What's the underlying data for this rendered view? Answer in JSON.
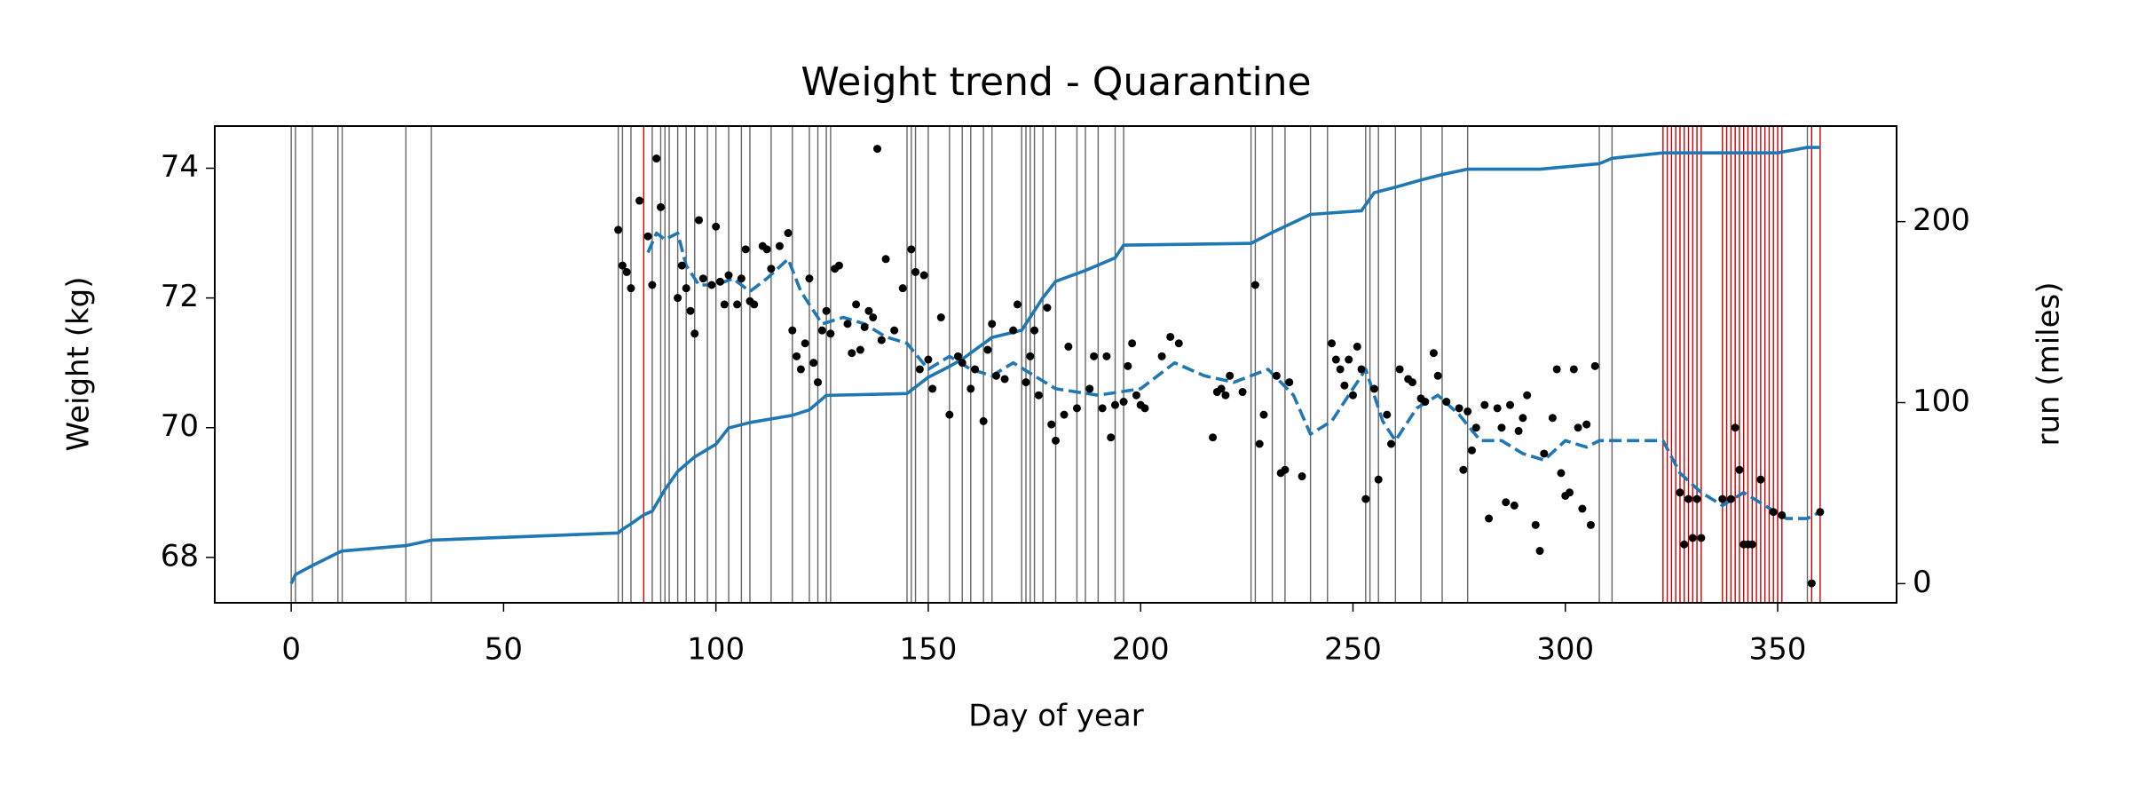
{
  "chart_data": {
    "type": "line",
    "title": "Weight trend - Quarantine",
    "xlabel": "Day of year",
    "ylabel": "Weight (kg)",
    "y2label": "run (miles)",
    "xlim": [
      -18,
      378
    ],
    "xticks": [
      0,
      50,
      100,
      150,
      200,
      250,
      300,
      350
    ],
    "ylim": [
      67.3,
      74.65
    ],
    "yticks": [
      68,
      70,
      72,
      74
    ],
    "y2lim": [
      -10.6,
      252.8
    ],
    "y2ticks": [
      0,
      100,
      200
    ],
    "vlines": [
      {
        "color": "#666666",
        "x": [
          0,
          1,
          5,
          11,
          12,
          27,
          33,
          77,
          78,
          80,
          85,
          87,
          88,
          89,
          91,
          93,
          95,
          98,
          100,
          103,
          106,
          108,
          113,
          118,
          122,
          124,
          126,
          127,
          145,
          146,
          147,
          150,
          155,
          158,
          160,
          163,
          165,
          172,
          173,
          174,
          175,
          177,
          180,
          185,
          187,
          190,
          194,
          196,
          226,
          227,
          231,
          234,
          240,
          244,
          253,
          254,
          256,
          260,
          266,
          271,
          277,
          308,
          311,
          357
        ]
      },
      {
        "color": "#cc0000",
        "x": [
          83,
          323,
          324,
          325,
          326,
          327,
          328,
          329,
          330,
          331,
          332,
          337,
          338,
          339,
          340,
          341,
          342,
          343,
          344,
          345,
          346,
          347,
          348,
          349,
          350,
          351,
          358,
          360
        ]
      }
    ],
    "points": {
      "color": "#000000",
      "x": [
        77,
        78,
        79,
        80,
        82,
        84,
        85,
        86,
        87,
        91,
        92,
        93,
        94,
        95,
        96,
        97,
        99,
        100,
        101,
        102,
        103,
        105,
        106,
        107,
        108,
        109,
        111,
        112,
        113,
        115,
        117,
        118,
        119,
        120,
        121,
        122,
        123,
        124,
        125,
        126,
        127,
        128,
        129,
        131,
        132,
        133,
        134,
        135,
        136,
        137,
        138,
        139,
        140,
        142,
        144,
        146,
        147,
        148,
        149,
        150,
        151,
        153,
        155,
        157,
        158,
        160,
        161,
        163,
        164,
        165,
        166,
        168,
        170,
        171,
        173,
        174,
        175,
        176,
        178,
        179,
        180,
        182,
        183,
        185,
        188,
        189,
        191,
        192,
        193,
        194,
        196,
        197,
        198,
        199,
        200,
        201,
        205,
        207,
        209,
        217,
        218,
        219,
        220,
        221,
        224,
        227,
        228,
        229,
        232,
        233,
        234,
        235,
        238,
        245,
        246,
        247,
        248,
        249,
        250,
        251,
        252,
        253,
        255,
        256,
        258,
        259,
        261,
        263,
        264,
        266,
        267,
        269,
        270,
        272,
        275,
        276,
        277,
        278,
        279,
        281,
        282,
        284,
        285,
        286,
        287,
        288,
        289,
        290,
        291,
        293,
        294,
        295,
        297,
        298,
        299,
        300,
        301,
        302,
        303,
        304,
        305,
        306,
        307,
        327,
        328,
        329,
        330,
        331,
        332,
        337,
        339,
        340,
        341,
        342,
        343,
        344,
        346,
        349,
        351,
        358,
        360
      ],
      "values": [
        73.05,
        72.5,
        72.4,
        72.15,
        73.5,
        72.95,
        72.2,
        74.15,
        73.4,
        72.0,
        72.5,
        72.15,
        71.8,
        71.45,
        73.2,
        72.3,
        72.2,
        73.1,
        72.25,
        71.9,
        72.35,
        71.9,
        72.3,
        72.75,
        71.95,
        71.9,
        72.8,
        72.75,
        72.45,
        72.8,
        73.0,
        71.5,
        71.1,
        70.9,
        71.3,
        72.3,
        71.0,
        70.7,
        71.5,
        71.8,
        71.45,
        72.45,
        72.5,
        71.6,
        71.15,
        71.9,
        71.2,
        71.55,
        71.8,
        71.7,
        74.3,
        71.35,
        72.6,
        71.5,
        72.15,
        72.75,
        72.4,
        70.9,
        72.35,
        71.05,
        70.6,
        71.7,
        70.2,
        71.1,
        71.0,
        70.6,
        70.9,
        70.1,
        71.2,
        71.6,
        70.8,
        70.75,
        71.5,
        71.9,
        70.7,
        71.1,
        71.5,
        70.5,
        71.85,
        70.05,
        69.8,
        70.2,
        71.25,
        70.3,
        70.6,
        71.1,
        70.3,
        71.1,
        69.85,
        70.35,
        70.4,
        70.95,
        71.3,
        70.5,
        70.35,
        70.3,
        71.1,
        71.4,
        71.3,
        69.85,
        70.55,
        70.6,
        70.5,
        70.8,
        70.55,
        72.2,
        69.75,
        70.2,
        70.8,
        69.3,
        69.35,
        70.7,
        69.25,
        71.3,
        71.05,
        70.9,
        70.65,
        71.05,
        70.5,
        71.25,
        70.9,
        68.9,
        70.6,
        69.2,
        70.2,
        69.75,
        70.9,
        70.75,
        70.7,
        70.45,
        70.4,
        71.15,
        70.8,
        70.4,
        70.3,
        69.35,
        70.25,
        69.65,
        70.0,
        70.35,
        68.6,
        70.3,
        70.0,
        68.85,
        70.35,
        68.8,
        69.95,
        70.15,
        70.5,
        68.5,
        68.1,
        69.6,
        70.15,
        70.9,
        69.3,
        68.95,
        69.0,
        70.9,
        70.0,
        68.75,
        70.05,
        68.5,
        70.95,
        69.0,
        68.2,
        68.9,
        68.3,
        68.9,
        68.3,
        68.9,
        68.9,
        70.0,
        69.35,
        68.2,
        68.2,
        68.2,
        69.2,
        68.7,
        68.65,
        67.6,
        68.7
      ]
    },
    "series": [
      {
        "color": "#1f77b4",
        "style": "dashed",
        "x": [
          84,
          86,
          88,
          91,
          93,
          96,
          100,
          104,
          108,
          112,
          117,
          120,
          125,
          130,
          135,
          140,
          145,
          150,
          155,
          160,
          165,
          170,
          175,
          180,
          190,
          200,
          208,
          215,
          222,
          230,
          236,
          240,
          245,
          250,
          253,
          257,
          260,
          265,
          270,
          275,
          280,
          285,
          290,
          295,
          300,
          305,
          308,
          323,
          327,
          332,
          337,
          342,
          347,
          352,
          357,
          360
        ],
        "values": [
          72.7,
          73.0,
          72.9,
          73.0,
          72.5,
          72.2,
          72.2,
          72.3,
          72.1,
          72.3,
          72.6,
          72.1,
          71.6,
          71.7,
          71.6,
          71.4,
          71.3,
          70.9,
          71.1,
          70.9,
          70.8,
          71.0,
          70.8,
          70.6,
          70.5,
          70.6,
          71.0,
          70.8,
          70.7,
          70.9,
          70.5,
          69.9,
          70.1,
          70.6,
          70.9,
          70.1,
          69.8,
          70.3,
          70.5,
          70.2,
          69.8,
          69.8,
          69.6,
          69.5,
          69.8,
          69.7,
          69.8,
          69.8,
          69.3,
          69.0,
          68.8,
          69.0,
          68.8,
          68.6,
          68.6,
          68.7
        ]
      },
      {
        "color": "#1f77b4",
        "axis": "y2",
        "x": [
          0,
          1,
          5,
          11,
          12,
          27,
          33,
          77,
          78,
          80,
          83,
          85,
          88,
          91,
          95,
          100,
          103,
          108,
          118,
          122,
          126,
          145,
          150,
          155,
          158,
          165,
          172,
          177,
          180,
          187,
          194,
          196,
          226,
          231,
          240,
          252,
          255,
          260,
          266,
          271,
          277,
          294,
          308,
          311,
          323,
          350,
          357,
          360
        ],
        "values": [
          0,
          5,
          10,
          17,
          18,
          21,
          24,
          28,
          30,
          33,
          38,
          40,
          52,
          62,
          70,
          77,
          86,
          89,
          93,
          96,
          104,
          105,
          114,
          120,
          124,
          136,
          140,
          158,
          167,
          173,
          180,
          187,
          188,
          194,
          204,
          206,
          216,
          219,
          223,
          226,
          229,
          229,
          232,
          235,
          238,
          238,
          241,
          241
        ]
      }
    ]
  }
}
